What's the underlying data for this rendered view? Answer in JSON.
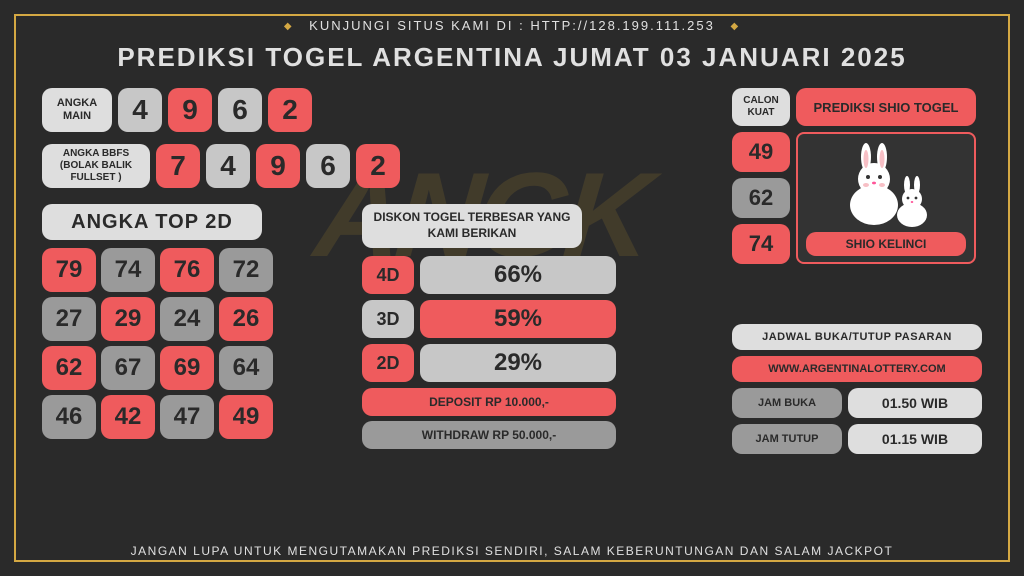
{
  "colors": {
    "frame": "#d4a843",
    "bg": "#2a2a2a",
    "white": "#dedede",
    "red": "#ef5b5d",
    "grey": "#9a9a9a",
    "greylt": "#c7c7c7",
    "text_light": "#e0e0e0"
  },
  "top_banner": "KUNJUNGI SITUS KAMI DI : HTTP://128.199.111.253",
  "title": "PREDIKSI TOGEL ARGENTINA JUMAT 03 JANUARI 2025",
  "bottom_banner": "JANGAN LUPA UNTUK MENGUTAMAKAN PREDIKSI SENDIRI, SALAM KEBERUNTUNGAN DAN SALAM JACKPOT",
  "angka_main": {
    "label": "ANGKA MAIN",
    "digits": [
      {
        "v": "4",
        "c": "greylt"
      },
      {
        "v": "9",
        "c": "red"
      },
      {
        "v": "6",
        "c": "greylt"
      },
      {
        "v": "2",
        "c": "red"
      }
    ]
  },
  "bbfs": {
    "label": "ANGKA BBFS (BOLAK BALIK FULLSET )",
    "digits": [
      {
        "v": "7",
        "c": "red"
      },
      {
        "v": "4",
        "c": "greylt"
      },
      {
        "v": "9",
        "c": "red"
      },
      {
        "v": "6",
        "c": "greylt"
      },
      {
        "v": "2",
        "c": "red"
      }
    ]
  },
  "top2d": {
    "title": "ANGKA TOP 2D",
    "cells": [
      {
        "v": "79",
        "c": "red"
      },
      {
        "v": "74",
        "c": "grey"
      },
      {
        "v": "76",
        "c": "red"
      },
      {
        "v": "72",
        "c": "grey"
      },
      {
        "v": "27",
        "c": "grey"
      },
      {
        "v": "29",
        "c": "red"
      },
      {
        "v": "24",
        "c": "grey"
      },
      {
        "v": "26",
        "c": "red"
      },
      {
        "v": "62",
        "c": "red"
      },
      {
        "v": "67",
        "c": "grey"
      },
      {
        "v": "69",
        "c": "red"
      },
      {
        "v": "64",
        "c": "grey"
      },
      {
        "v": "46",
        "c": "grey"
      },
      {
        "v": "42",
        "c": "red"
      },
      {
        "v": "47",
        "c": "grey"
      },
      {
        "v": "49",
        "c": "red"
      }
    ]
  },
  "diskon": {
    "title": "DISKON TOGEL TERBESAR YANG KAMI BERIKAN",
    "rows": [
      {
        "tag": "4D",
        "tag_c": "red",
        "val": "66%",
        "val_c": "greylt"
      },
      {
        "tag": "3D",
        "tag_c": "greylt",
        "val": "59%",
        "val_c": "red"
      },
      {
        "tag": "2D",
        "tag_c": "red",
        "val": "29%",
        "val_c": "greylt"
      }
    ],
    "deposit": "DEPOSIT RP 10.000,-",
    "withdraw": "WITHDRAW RP 50.000,-"
  },
  "calon": {
    "label": "CALON KUAT",
    "title": "PREDIKSI SHIO TOGEL",
    "nums": [
      {
        "v": "49",
        "c": "red"
      },
      {
        "v": "62",
        "c": "grey"
      },
      {
        "v": "74",
        "c": "red"
      }
    ],
    "shio_name": "SHIO KELINCI"
  },
  "jadwal": {
    "title": "JADWAL BUKA/TUTUP PASARAN",
    "site": "WWW.ARGENTINALOTTERY.COM",
    "rows": [
      {
        "lab": "JAM BUKA",
        "tim": "01.50 WIB"
      },
      {
        "lab": "JAM TUTUP",
        "tim": "01.15 WIB"
      }
    ]
  },
  "watermark": "ANGK"
}
